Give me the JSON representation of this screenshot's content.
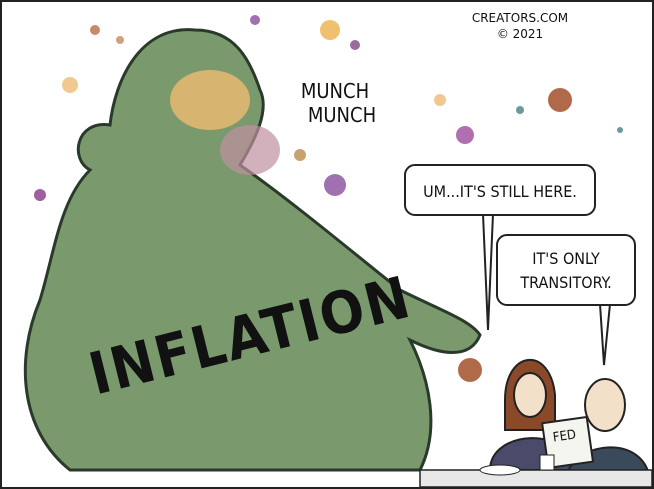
{
  "credit": {
    "site": "CREATORS.COM",
    "year": "© 2021"
  },
  "sound_effect": [
    "MUNCH",
    "MUNCH"
  ],
  "speech_bubbles": [
    {
      "lines": [
        "UM...IT'S STILL HERE."
      ]
    },
    {
      "lines": [
        "IT'S ONLY",
        "TRANSITORY."
      ]
    }
  ],
  "label": "INFLATION",
  "newspaper": "FED"
}
